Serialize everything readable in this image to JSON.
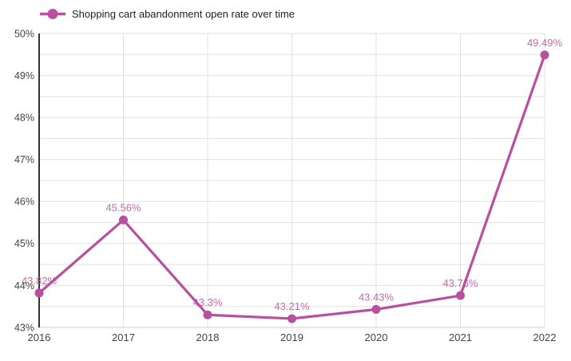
{
  "chart_data": {
    "type": "line",
    "title": "Shopping cart abandonment open rate over time",
    "categories": [
      "2016",
      "2017",
      "2018",
      "2019",
      "2020",
      "2021",
      "2022"
    ],
    "series": [
      {
        "name": "Shopping cart abandonment open rate over time",
        "values": [
          43.82,
          45.56,
          43.3,
          43.21,
          43.43,
          43.76,
          49.49
        ],
        "point_labels": [
          "43.82%",
          "45.56%",
          "43.3%",
          "43.21%",
          "43.43%",
          "43.76%",
          "49.49%"
        ],
        "color": "#b9509f",
        "label_color": "#c56ba9"
      }
    ],
    "xlabel": "",
    "ylabel": "",
    "ylim": [
      43,
      50
    ],
    "y_major_step": 1,
    "y_minor_step": 0.5,
    "y_tick_labels": [
      "43%",
      "44%",
      "45%",
      "46%",
      "47%",
      "48%",
      "49%",
      "50%"
    ],
    "legend_position": "top-left",
    "grid": true,
    "colors": {
      "background": "#ffffff",
      "gridline": "#e0e0e0",
      "x_baseline": "#cccccc",
      "y_axis_line": "#333333",
      "tick_text": "#444444"
    }
  }
}
